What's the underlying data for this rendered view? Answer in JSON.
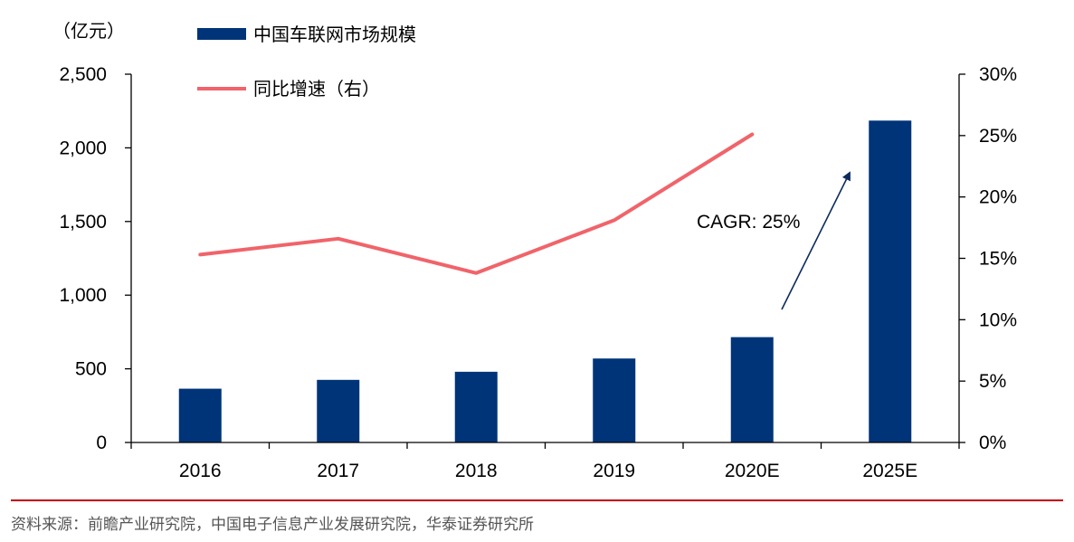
{
  "chart_data": {
    "type": "bar",
    "categories": [
      "2016",
      "2017",
      "2018",
      "2019",
      "2020E",
      "2025E"
    ],
    "series": [
      {
        "name": "中国车联网市场规模",
        "type": "bar",
        "axis": "left",
        "color": "#003478",
        "values": [
          365,
          425,
          480,
          570,
          715,
          2185
        ]
      },
      {
        "name": "同比增速（右）",
        "type": "line",
        "axis": "right",
        "color": "#F0646A",
        "values": [
          15.3,
          16.6,
          13.8,
          18.1,
          25.1,
          null
        ]
      }
    ],
    "left_axis": {
      "unit": "（亿元）",
      "ylim": [
        0,
        2500
      ],
      "ticks": [
        0,
        500,
        1000,
        1500,
        2000,
        2500
      ],
      "tick_labels": [
        "0",
        "500",
        "1,000",
        "1,500",
        "2,000",
        "2,500"
      ]
    },
    "right_axis": {
      "ylim": [
        0,
        30
      ],
      "ticks": [
        0,
        5,
        10,
        15,
        20,
        25,
        30
      ],
      "tick_labels": [
        "0%",
        "5%",
        "10%",
        "15%",
        "20%",
        "25%",
        "30%"
      ]
    },
    "legend_position": "top-left",
    "annotation": {
      "text": "CAGR: 25%",
      "from_category": "2020E",
      "to_category": "2025E"
    },
    "grid": false
  },
  "source_text": "资料来源：前瞻产业研究院，中国电子信息产业发展研究院，华泰证券研究所",
  "colors": {
    "bar": "#003478",
    "line": "#F0646A",
    "divider": "#C00000",
    "arrow": "#0D2B5E"
  }
}
